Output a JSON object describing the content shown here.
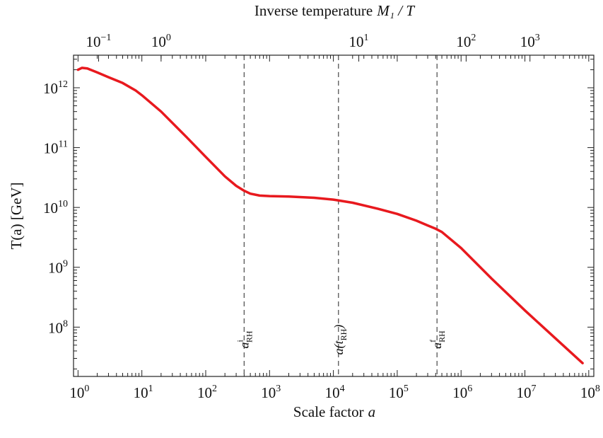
{
  "chart_data": {
    "type": "line",
    "x_scale": "log",
    "y_scale": "log",
    "xlim": [
      0.85,
      120000000
    ],
    "ylim": [
      15000000,
      3500000000000
    ],
    "xlabel": "Scale factor",
    "xlabel_var": "a",
    "ylabel": "T(a)  [GeV]",
    "top_axis_title": "Inverse temperature",
    "top_axis_var": "M₁ / T",
    "x_ticks": [
      {
        "value": 1,
        "base": "10",
        "exp": "0"
      },
      {
        "value": 10,
        "base": "10",
        "exp": "1"
      },
      {
        "value": 100,
        "base": "10",
        "exp": "2"
      },
      {
        "value": 1000,
        "base": "10",
        "exp": "3"
      },
      {
        "value": 10000,
        "base": "10",
        "exp": "4"
      },
      {
        "value": 100000,
        "base": "10",
        "exp": "5"
      },
      {
        "value": 1000000,
        "base": "10",
        "exp": "6"
      },
      {
        "value": 10000000,
        "base": "10",
        "exp": "7"
      },
      {
        "value": 100000000,
        "base": "10",
        "exp": "8"
      }
    ],
    "y_ticks": [
      {
        "value": 100000000,
        "base": "10",
        "exp": "8"
      },
      {
        "value": 1000000000,
        "base": "10",
        "exp": "9"
      },
      {
        "value": 10000000000,
        "base": "10",
        "exp": "10"
      },
      {
        "value": 100000000000,
        "base": "10",
        "exp": "11"
      },
      {
        "value": 1000000000000,
        "base": "10",
        "exp": "12"
      }
    ],
    "top_ticks": [
      {
        "a": 2.1,
        "base": "10",
        "exp": "−1"
      },
      {
        "a": 20,
        "base": "10",
        "exp": "0"
      },
      {
        "a": 25000,
        "base": "10",
        "exp": "1"
      },
      {
        "a": 1200000,
        "base": "10",
        "exp": "2"
      },
      {
        "a": 12000000,
        "base": "10",
        "exp": "3"
      }
    ],
    "series": [
      {
        "color": "#e8191e",
        "x": [
          1.0,
          1.15,
          1.4,
          2,
          3,
          5,
          8,
          10,
          20,
          50,
          100,
          200,
          300,
          400,
          500,
          700,
          1000,
          2000,
          5000,
          10000,
          20000,
          50000,
          100000,
          200000,
          300000,
          400000,
          500000,
          1000000,
          3000000,
          10000000,
          30000000,
          80000000
        ],
        "y": [
          2000000000000.0,
          2150000000000.0,
          2100000000000.0,
          1800000000000.0,
          1500000000000.0,
          1200000000000.0,
          900000000000.0,
          750000000000.0,
          400000000000.0,
          150000000000.0,
          70000000000.0,
          33000000000.0,
          23000000000.0,
          19000000000.0,
          17000000000.0,
          15800000000.0,
          15500000000.0,
          15200000000.0,
          14500000000.0,
          13500000000.0,
          12000000000.0,
          9500000000.0,
          7800000000.0,
          6000000000.0,
          5000000000.0,
          4400000000.0,
          3900000000.0,
          2100000000.0,
          650000000.0,
          190000000.0,
          65000000.0,
          25000000.0
        ]
      }
    ],
    "vertical_lines": [
      {
        "x": 400,
        "label_base": "a",
        "label_sup": "i",
        "label_sub": "RH"
      },
      {
        "x": 12000,
        "label_base": "a(t",
        "label_sub": "RH",
        "label_end": ")"
      },
      {
        "x": 420000,
        "label_base": "a",
        "label_sup": "f",
        "label_sub": "RH"
      }
    ],
    "grid": false,
    "legend": "none"
  }
}
